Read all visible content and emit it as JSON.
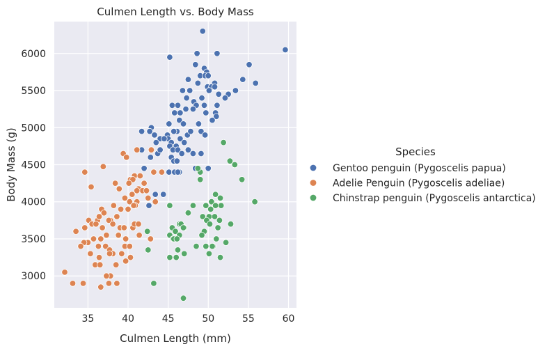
{
  "chart_data": {
    "type": "scatter",
    "title": "Culmen Length vs. Body Mass",
    "xlabel": "Culmen Length (mm)",
    "ylabel": "Body Mass (g)",
    "xlim": [
      30.8,
      61.0
    ],
    "ylim": [
      2570,
      6430
    ],
    "xticks": [
      35,
      40,
      45,
      50,
      55,
      60
    ],
    "yticks": [
      3000,
      3500,
      4000,
      4500,
      5000,
      5500,
      6000
    ],
    "grid": true,
    "background": "#eaeaf2",
    "legend": {
      "title": "Species",
      "placement": "outside-right"
    },
    "series": [
      {
        "name": "Gentoo penguin (Pygoscelis papua)",
        "color": "#4c72b0",
        "points": [
          [
            49.3,
            6300
          ],
          [
            48.6,
            6000
          ],
          [
            51.1,
            6000
          ],
          [
            45.2,
            5950
          ],
          [
            59.6,
            6050
          ],
          [
            55.1,
            5850
          ],
          [
            48.4,
            5850
          ],
          [
            49.5,
            5800
          ],
          [
            49.8,
            5750
          ],
          [
            47.5,
            5650
          ],
          [
            49.0,
            5700
          ],
          [
            49.6,
            5700
          ],
          [
            50.0,
            5700
          ],
          [
            54.3,
            5650
          ],
          [
            48.7,
            5600
          ],
          [
            50.8,
            5600
          ],
          [
            55.9,
            5600
          ],
          [
            49.9,
            5550
          ],
          [
            50.4,
            5550
          ],
          [
            50.8,
            5550
          ],
          [
            46.8,
            5500
          ],
          [
            47.7,
            5500
          ],
          [
            50.1,
            5500
          ],
          [
            53.4,
            5500
          ],
          [
            51.3,
            5450
          ],
          [
            52.5,
            5450
          ],
          [
            49.2,
            5400
          ],
          [
            47.3,
            5400
          ],
          [
            52.1,
            5400
          ],
          [
            48.2,
            5350
          ],
          [
            48.5,
            5300
          ],
          [
            49.5,
            5300
          ],
          [
            45.5,
            5300
          ],
          [
            46.2,
            5300
          ],
          [
            51.1,
            5300
          ],
          [
            45.8,
            5200
          ],
          [
            47.2,
            5250
          ],
          [
            48.1,
            5250
          ],
          [
            46.5,
            5200
          ],
          [
            49.7,
            5200
          ],
          [
            50.9,
            5200
          ],
          [
            51.0,
            5150
          ],
          [
            45.1,
            5050
          ],
          [
            46.4,
            5100
          ],
          [
            50.5,
            5100
          ],
          [
            46.9,
            5050
          ],
          [
            48.8,
            5050
          ],
          [
            42.9,
            5000
          ],
          [
            42.7,
            4950
          ],
          [
            46.1,
            4950
          ],
          [
            47.4,
            4900
          ],
          [
            45.7,
            4950
          ],
          [
            47.8,
            4950
          ],
          [
            44.9,
            4900
          ],
          [
            49.1,
            4950
          ],
          [
            49.6,
            4900
          ],
          [
            41.7,
            4950
          ],
          [
            43.3,
            4900
          ],
          [
            44.0,
            4850
          ],
          [
            45.0,
            4850
          ],
          [
            46.5,
            4850
          ],
          [
            47.0,
            4800
          ],
          [
            44.5,
            4850
          ],
          [
            43.5,
            4800
          ],
          [
            45.4,
            4800
          ],
          [
            46.0,
            4750
          ],
          [
            45.2,
            4750
          ],
          [
            47.5,
            4700
          ],
          [
            45.6,
            4700
          ],
          [
            46.2,
            4700
          ],
          [
            41.7,
            4700
          ],
          [
            43.7,
            4650
          ],
          [
            46.7,
            4650
          ],
          [
            48.1,
            4650
          ],
          [
            49.1,
            4650
          ],
          [
            42.8,
            4600
          ],
          [
            44.0,
            4700
          ],
          [
            45.4,
            4600
          ],
          [
            45.7,
            4550
          ],
          [
            46.1,
            4550
          ],
          [
            42.0,
            4450
          ],
          [
            48.4,
            4450
          ],
          [
            50.0,
            4450
          ],
          [
            45.1,
            4400
          ],
          [
            45.8,
            4400
          ],
          [
            46.4,
            4400
          ],
          [
            46.2,
            4400
          ],
          [
            44.4,
            4100
          ],
          [
            43.4,
            4100
          ],
          [
            42.6,
            3950
          ]
        ]
      },
      {
        "name": "Adelie Penguin (Pygoscelis adeliae)",
        "color": "#dd8452",
        "points": [
          [
            41.1,
            4700
          ],
          [
            42.9,
            4700
          ],
          [
            39.4,
            4650
          ],
          [
            40.3,
            4300
          ],
          [
            43.2,
            4400
          ],
          [
            44.2,
            4400
          ],
          [
            40.8,
            4350
          ],
          [
            41.5,
            4350
          ],
          [
            39.8,
            4600
          ],
          [
            40.6,
            4300
          ],
          [
            42.0,
            4250
          ],
          [
            40.1,
            4250
          ],
          [
            38.4,
            4250
          ],
          [
            36.9,
            4475
          ],
          [
            34.6,
            4400
          ],
          [
            35.4,
            4200
          ],
          [
            43.4,
            4000
          ],
          [
            38.9,
            4175
          ],
          [
            41.3,
            4175
          ],
          [
            41.8,
            4150
          ],
          [
            41.1,
            4150
          ],
          [
            42.3,
            4150
          ],
          [
            40.5,
            4100
          ],
          [
            39.6,
            4050
          ],
          [
            42.5,
            4050
          ],
          [
            40.2,
            4000
          ],
          [
            41.1,
            4000
          ],
          [
            40.9,
            3950
          ],
          [
            40.7,
            3950
          ],
          [
            38.2,
            3950
          ],
          [
            36.7,
            3900
          ],
          [
            39.1,
            3900
          ],
          [
            40.0,
            3900
          ],
          [
            37.0,
            3850
          ],
          [
            38.6,
            3800
          ],
          [
            37.8,
            3750
          ],
          [
            36.2,
            3750
          ],
          [
            35.1,
            3750
          ],
          [
            35.5,
            3700
          ],
          [
            36.0,
            3700
          ],
          [
            37.6,
            3750
          ],
          [
            38.1,
            3700
          ],
          [
            39.0,
            3650
          ],
          [
            39.5,
            3650
          ],
          [
            40.6,
            3650
          ],
          [
            34.6,
            3650
          ],
          [
            33.5,
            3600
          ],
          [
            36.8,
            3650
          ],
          [
            37.3,
            3550
          ],
          [
            38.8,
            3550
          ],
          [
            39.7,
            3500
          ],
          [
            36.6,
            3500
          ],
          [
            35.7,
            3500
          ],
          [
            35.0,
            3450
          ],
          [
            34.5,
            3450
          ],
          [
            37.2,
            3400
          ],
          [
            34.1,
            3400
          ],
          [
            36.3,
            3400
          ],
          [
            39.6,
            3400
          ],
          [
            40.2,
            3400
          ],
          [
            41.4,
            3550
          ],
          [
            37.7,
            3350
          ],
          [
            38.1,
            3300
          ],
          [
            39.2,
            3300
          ],
          [
            35.3,
            3300
          ],
          [
            37.7,
            3300
          ],
          [
            36.4,
            3250
          ],
          [
            40.3,
            3250
          ],
          [
            39.7,
            3200
          ],
          [
            36.0,
            3150
          ],
          [
            35.9,
            3150
          ],
          [
            36.5,
            3150
          ],
          [
            38.5,
            3150
          ],
          [
            37.8,
            3000
          ],
          [
            37.3,
            3000
          ],
          [
            38.6,
            2900
          ],
          [
            37.6,
            2900
          ],
          [
            34.4,
            2900
          ],
          [
            33.1,
            2900
          ],
          [
            36.6,
            2850
          ],
          [
            32.1,
            3050
          ],
          [
            42.8,
            3500
          ],
          [
            40.8,
            3700
          ],
          [
            41.3,
            3700
          ],
          [
            36.4,
            3800
          ]
        ]
      },
      {
        "name": "Chinstrap penguin (Pygoscelis antarctica)",
        "color": "#55a868",
        "points": [
          [
            51.9,
            4800
          ],
          [
            52.7,
            4550
          ],
          [
            53.3,
            4500
          ],
          [
            49.0,
            4400
          ],
          [
            48.7,
            4450
          ],
          [
            54.2,
            4300
          ],
          [
            49.0,
            4300
          ],
          [
            50.9,
            4100
          ],
          [
            51.5,
            4050
          ],
          [
            50.4,
            4000
          ],
          [
            55.8,
            4000
          ],
          [
            51.6,
            3950
          ],
          [
            50.9,
            3950
          ],
          [
            48.1,
            3950
          ],
          [
            45.2,
            3950
          ],
          [
            49.7,
            3950
          ],
          [
            47.5,
            3850
          ],
          [
            46.4,
            3700
          ],
          [
            49.3,
            3800
          ],
          [
            50.3,
            3900
          ],
          [
            50.1,
            3800
          ],
          [
            50.8,
            3800
          ],
          [
            49.8,
            3750
          ],
          [
            51.4,
            3750
          ],
          [
            52.8,
            3700
          ],
          [
            50.2,
            3700
          ],
          [
            46.6,
            3700
          ],
          [
            45.5,
            3650
          ],
          [
            51.2,
            3650
          ],
          [
            47.0,
            3650
          ],
          [
            46.9,
            3650
          ],
          [
            49.5,
            3600
          ],
          [
            45.9,
            3600
          ],
          [
            49.2,
            3550
          ],
          [
            46.4,
            3550
          ],
          [
            45.2,
            3550
          ],
          [
            45.6,
            3500
          ],
          [
            51.0,
            3500
          ],
          [
            45.7,
            3500
          ],
          [
            46.1,
            3500
          ],
          [
            42.4,
            3600
          ],
          [
            49.7,
            3400
          ],
          [
            48.5,
            3400
          ],
          [
            50.6,
            3400
          ],
          [
            52.2,
            3450
          ],
          [
            46.2,
            3350
          ],
          [
            51.5,
            3250
          ],
          [
            42.5,
            3350
          ],
          [
            47.0,
            3300
          ],
          [
            50.1,
            3300
          ],
          [
            46.0,
            3250
          ],
          [
            45.2,
            3250
          ],
          [
            43.2,
            2900
          ],
          [
            46.9,
            2700
          ],
          [
            50.5,
            3400
          ]
        ]
      }
    ]
  }
}
